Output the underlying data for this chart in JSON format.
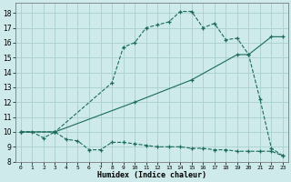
{
  "xlabel": "Humidex (Indice chaleur)",
  "bg_color": "#ceeaea",
  "grid_color": "#aacfcf",
  "line_color": "#1a6b5a",
  "xlim": [
    -0.5,
    23.5
  ],
  "ylim": [
    8,
    18.7
  ],
  "xticks": [
    0,
    1,
    2,
    3,
    4,
    5,
    6,
    7,
    8,
    9,
    10,
    11,
    12,
    13,
    14,
    15,
    16,
    17,
    18,
    19,
    20,
    21,
    22,
    23
  ],
  "yticks": [
    8,
    9,
    10,
    11,
    12,
    13,
    14,
    15,
    16,
    17,
    18
  ],
  "line1_x": [
    0,
    1,
    2,
    3,
    4,
    5,
    6,
    7,
    8,
    9,
    10,
    11,
    12,
    13,
    14,
    15,
    16,
    17,
    18,
    19,
    20,
    21,
    22,
    23
  ],
  "line1_y": [
    10.0,
    10.0,
    9.6,
    10.0,
    9.5,
    9.4,
    8.8,
    8.8,
    9.3,
    9.3,
    9.2,
    9.1,
    9.0,
    9.0,
    9.0,
    8.9,
    8.9,
    8.8,
    8.8,
    8.7,
    8.7,
    8.7,
    8.7,
    8.4
  ],
  "line2_x": [
    0,
    3,
    8,
    9,
    10,
    11,
    12,
    13,
    14,
    15,
    16,
    17,
    18,
    19,
    20,
    21,
    22,
    23
  ],
  "line2_y": [
    10.0,
    10.0,
    13.3,
    15.7,
    16.0,
    17.0,
    17.2,
    17.4,
    18.1,
    18.1,
    17.0,
    17.3,
    16.2,
    16.3,
    15.2,
    12.2,
    8.9,
    8.4
  ],
  "line3_x": [
    0,
    3,
    10,
    15,
    19,
    20,
    22,
    23
  ],
  "line3_y": [
    10.0,
    10.0,
    12.0,
    13.5,
    15.2,
    15.2,
    16.4,
    16.4
  ]
}
